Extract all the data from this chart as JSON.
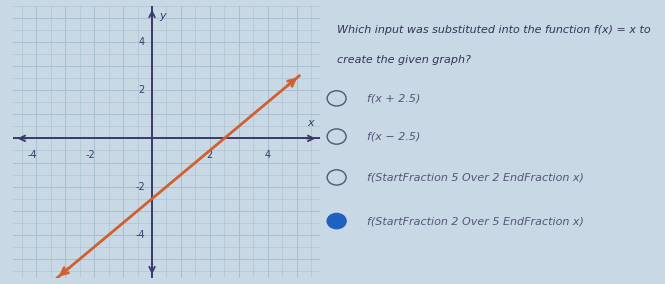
{
  "background_color": "#c8d8e4",
  "graph_bg": "#c8dce8",
  "grid_color": "#a8c0d0",
  "axis_color": "#3a3a6a",
  "line_color": "#d06030",
  "xlim": [
    -4.8,
    5.8
  ],
  "ylim": [
    -5.8,
    5.5
  ],
  "xticks": [
    -4,
    -2,
    2,
    4
  ],
  "yticks": [
    -4,
    -2,
    2,
    4
  ],
  "xlabel": "x",
  "ylabel": "y",
  "line_slope": 1.0,
  "line_intercept": -2.5,
  "line_x_start": -3.3,
  "line_x_end": 5.1,
  "question_line1": "Which input was substituted into the function f(x) = x to",
  "question_line2": "create the given graph?",
  "options": [
    "f(x + 2.5)",
    "f(x − 2.5)",
    "f(⁠StartFraction 5 Over 2 EndFraction x)",
    "f(⁠StartFraction 2 Over 5 EndFraction x)"
  ],
  "selected_index": 3,
  "right_bg": "#e8eef4",
  "option_color": "#555577",
  "selected_dot_color": "#2060c0",
  "question_color": "#333355",
  "font_size_question": 8.0,
  "font_size_option": 8.0
}
